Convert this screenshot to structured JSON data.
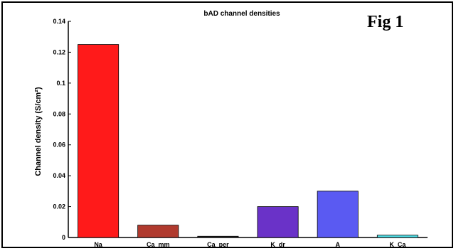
{
  "fig_label": "Fig 1",
  "chart_data": {
    "type": "bar",
    "title": "bAD channel densities",
    "ylabel": "Channel density (S/cm²)",
    "xlabel": "",
    "categories": [
      "Na",
      "Ca_mm",
      "Ca_per",
      "K_dr",
      "A",
      "K_Ca"
    ],
    "values": [
      0.125,
      0.008,
      0.0008,
      0.02,
      0.03,
      0.0015
    ],
    "colors": [
      "#ff1a1a",
      "#b03a2e",
      "#333333",
      "#6a32c8",
      "#5a5af2",
      "#4fe0e8"
    ],
    "ylim": [
      0,
      0.14
    ],
    "yticks": [
      0,
      0.02,
      0.04,
      0.06,
      0.08,
      0.1,
      0.12,
      0.14
    ],
    "ytick_labels": [
      "0",
      "0.02",
      "0.04",
      "0.06",
      "0.08",
      "0.1",
      "0.12",
      "0.14"
    ],
    "grid": false
  }
}
